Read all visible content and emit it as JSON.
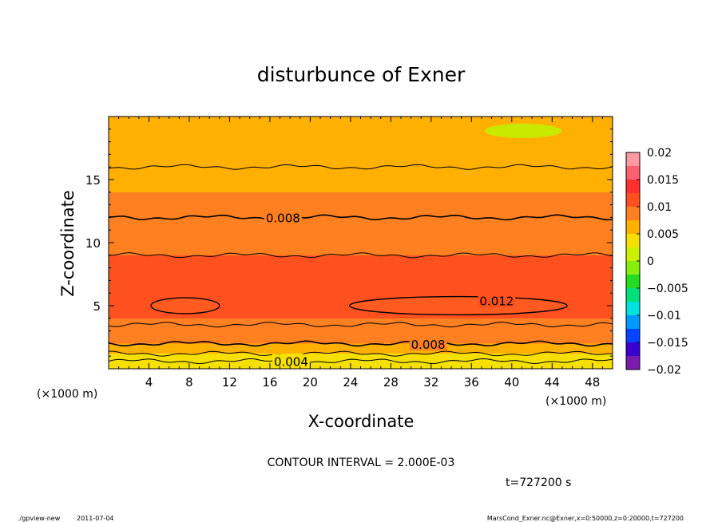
{
  "chart_data": {
    "type": "contour",
    "title": "disturbunce of Exner",
    "xlabel": "X-coordinate",
    "ylabel": "Z-coordinate",
    "x_unit": "(×1000 m)",
    "y_unit": "(×1000 m)",
    "xlim": [
      0,
      50
    ],
    "ylim": [
      0,
      20
    ],
    "x_ticks": [
      4,
      8,
      12,
      16,
      20,
      24,
      28,
      32,
      36,
      40,
      44,
      48
    ],
    "y_ticks": [
      5,
      10,
      15
    ],
    "contour_interval_label": "CONTOUR INTERVAL = 2.000E-03",
    "time_label": "t=727200 s",
    "colorbar": {
      "range": [
        -0.02,
        0.02
      ],
      "tick_labels": [
        "0.02",
        "0.015",
        "0.01",
        "0.005",
        "0",
        "−0.005",
        "−0.01",
        "−0.015",
        "−0.02"
      ],
      "tick_values": [
        0.02,
        0.015,
        0.01,
        0.005,
        0,
        -0.005,
        -0.01,
        -0.015,
        -0.02
      ]
    },
    "contour_labels": [
      {
        "text": "0.008",
        "value": 0.008,
        "x": 17.3,
        "z": 12.0
      },
      {
        "text": "0.012",
        "value": 0.012,
        "x": 38.5,
        "z": 5.4
      },
      {
        "text": "0.008",
        "value": 0.008,
        "x": 31.7,
        "z": 1.95
      },
      {
        "text": "0.004",
        "value": 0.004,
        "x": 18.1,
        "z": 0.6
      }
    ],
    "profile": [
      {
        "z": 0.0,
        "v": 0.0035
      },
      {
        "z": 0.6,
        "v": 0.0045
      },
      {
        "z": 1.2,
        "v": 0.0062
      },
      {
        "z": 2.0,
        "v": 0.008
      },
      {
        "z": 3.0,
        "v": 0.0095
      },
      {
        "z": 4.0,
        "v": 0.0108
      },
      {
        "z": 5.0,
        "v": 0.0115
      },
      {
        "z": 6.0,
        "v": 0.0112
      },
      {
        "z": 7.5,
        "v": 0.0105
      },
      {
        "z": 9.0,
        "v": 0.0098
      },
      {
        "z": 10.5,
        "v": 0.0092
      },
      {
        "z": 12.0,
        "v": 0.008
      },
      {
        "z": 14.0,
        "v": 0.0072
      },
      {
        "z": 16.0,
        "v": 0.006
      },
      {
        "z": 18.0,
        "v": 0.0052
      },
      {
        "z": 20.0,
        "v": 0.0048
      }
    ],
    "contours": [
      {
        "value": 0.004,
        "z": 0.6
      },
      {
        "value": 0.006,
        "z": 1.2
      },
      {
        "value": 0.008,
        "z": 2.0
      },
      {
        "value": 0.01,
        "z": 3.5
      },
      {
        "value": 0.01,
        "z": 9.0
      },
      {
        "value": 0.008,
        "z": 12.0
      },
      {
        "value": 0.006,
        "z": 16.0
      }
    ],
    "closed_contours": [
      {
        "value": 0.012,
        "x_center": 7.6,
        "z_center": 5.0,
        "x_half": 3.4,
        "z_half": 0.5
      },
      {
        "value": 0.012,
        "x_center": 34.7,
        "z_center": 5.0,
        "x_half": 10.8,
        "z_half": 0.6
      }
    ]
  },
  "footer": {
    "program": "./gpview-new",
    "date": "2011-07-04",
    "source": "MarsCond_Exner.nc@Exner,x=0:50000,z=0:20000,t=727200"
  },
  "colors": {
    "scale": [
      "#7a1bb0",
      "#3a00d0",
      "#0044ff",
      "#0099ff",
      "#00e0e0",
      "#00e07a",
      "#22dd22",
      "#88ee11",
      "#ccf000",
      "#f5e000",
      "#ffb000",
      "#ff8020",
      "#ff5020",
      "#ff3030",
      "#ff6070",
      "#ff9aa0"
    ]
  }
}
